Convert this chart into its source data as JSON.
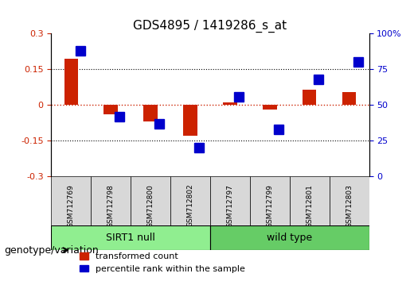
{
  "title": "GDS4895 / 1419286_s_at",
  "samples": [
    "GSM712769",
    "GSM712798",
    "GSM712800",
    "GSM712802",
    "GSM712797",
    "GSM712799",
    "GSM712801",
    "GSM712803"
  ],
  "groups": [
    {
      "label": "SIRT1 null",
      "indices": [
        0,
        1,
        2,
        3
      ],
      "color": "#90EE90"
    },
    {
      "label": "wild type",
      "indices": [
        4,
        5,
        6,
        7
      ],
      "color": "#66CC66"
    }
  ],
  "group_label": "genotype/variation",
  "red_values": [
    0.195,
    -0.04,
    -0.07,
    -0.13,
    0.01,
    -0.02,
    0.065,
    0.055
  ],
  "blue_values_pct": [
    88,
    42,
    37,
    20,
    56,
    33,
    68,
    80
  ],
  "ylim_left": [
    -0.3,
    0.3
  ],
  "ylim_right": [
    0,
    100
  ],
  "yticks_left": [
    -0.3,
    -0.15,
    0.0,
    0.15,
    0.3
  ],
  "yticks_right": [
    0,
    25,
    50,
    75,
    100
  ],
  "ytick_labels_left": [
    "-0.3",
    "-0.15",
    "0",
    "0.15",
    "0.3"
  ],
  "ytick_labels_right": [
    "0",
    "25",
    "50",
    "75",
    "100%"
  ],
  "hlines": [
    0.15,
    -0.15
  ],
  "red_color": "#CC2200",
  "blue_color": "#0000CC",
  "dashed_zero_color": "#CC2200",
  "bar_width": 0.35,
  "blue_marker_size": 8,
  "title_fontsize": 11,
  "tick_fontsize": 8,
  "legend_fontsize": 8,
  "group_fontsize": 9,
  "group_label_fontsize": 9
}
